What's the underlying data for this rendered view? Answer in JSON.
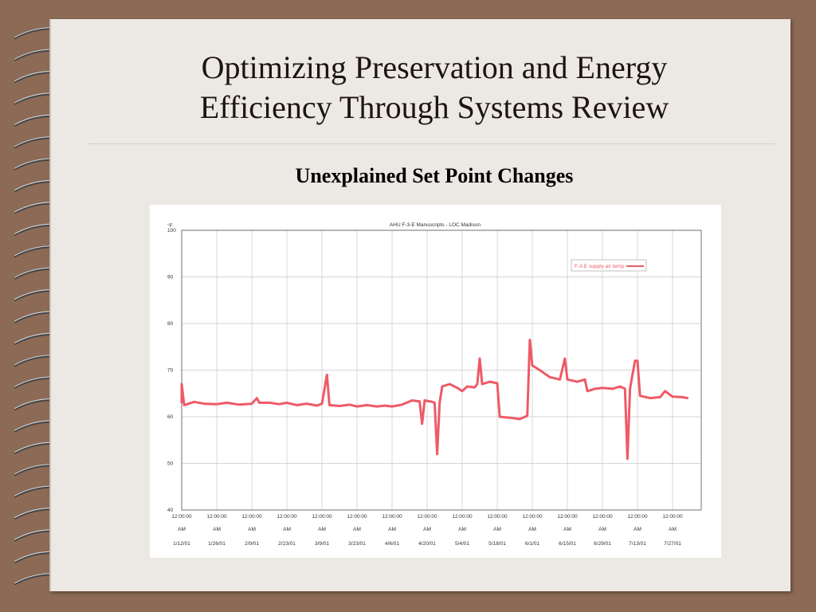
{
  "slide": {
    "title_line1": "Optimizing Preservation and Energy",
    "title_line2": "Efficiency Through Systems Review",
    "subtitle": "Unexplained Set Point Changes"
  },
  "colors": {
    "background": "#8c6a55",
    "page": "#ece8e3",
    "series": "#ee5a66"
  },
  "chart_data": {
    "type": "line",
    "title": "AHU F-3-E Manuscripts - LOC Madison",
    "ylabel": "°F",
    "xlabel": "",
    "ylim": [
      40,
      100
    ],
    "yticks": [
      40,
      50,
      60,
      70,
      80,
      90,
      100
    ],
    "grid": true,
    "legend": "top-right",
    "x_tick_labels": [
      {
        "time": "12:00:00",
        "ampm": "AM",
        "date": "1/12/01"
      },
      {
        "time": "12:00:00",
        "ampm": "AM",
        "date": "1/26/01"
      },
      {
        "time": "12:00:00",
        "ampm": "AM",
        "date": "2/9/01"
      },
      {
        "time": "12:00:00",
        "ampm": "AM",
        "date": "2/23/01"
      },
      {
        "time": "12:00:00",
        "ampm": "AM",
        "date": "3/9/01"
      },
      {
        "time": "12:00:00",
        "ampm": "AM",
        "date": "3/23/01"
      },
      {
        "time": "12:00:00",
        "ampm": "AM",
        "date": "4/6/01"
      },
      {
        "time": "12:00:00",
        "ampm": "AM",
        "date": "4/20/01"
      },
      {
        "time": "12:00:00",
        "ampm": "AM",
        "date": "5/4/01"
      },
      {
        "time": "12:00:00",
        "ampm": "AM",
        "date": "5/18/01"
      },
      {
        "time": "12:00:00",
        "ampm": "AM",
        "date": "6/1/01"
      },
      {
        "time": "12:00:00",
        "ampm": "AM",
        "date": "6/15/01"
      },
      {
        "time": "12:00:00",
        "ampm": "AM",
        "date": "6/29/01"
      },
      {
        "time": "12:00:00",
        "ampm": "AM",
        "date": "7/13/01"
      },
      {
        "time": "12:00:00",
        "ampm": "AM",
        "date": "7/27/01"
      }
    ],
    "series": [
      {
        "name": "F-3-E supply air temp",
        "points": [
          [
            "2001-01-12",
            63.0
          ],
          [
            "2001-01-12",
            67.0
          ],
          [
            "2001-01-13",
            62.5
          ],
          [
            "2001-01-17",
            63.2
          ],
          [
            "2001-01-21",
            62.8
          ],
          [
            "2001-01-26",
            62.7
          ],
          [
            "2001-01-30",
            63.0
          ],
          [
            "2001-02-04",
            62.6
          ],
          [
            "2001-02-09",
            62.8
          ],
          [
            "2001-02-11",
            64.0
          ],
          [
            "2001-02-12",
            63.0
          ],
          [
            "2001-02-16",
            63.0
          ],
          [
            "2001-02-20",
            62.7
          ],
          [
            "2001-02-23",
            63.0
          ],
          [
            "2001-02-27",
            62.5
          ],
          [
            "2001-03-03",
            62.8
          ],
          [
            "2001-03-07",
            62.4
          ],
          [
            "2001-03-09",
            62.8
          ],
          [
            "2001-03-11",
            69.0
          ],
          [
            "2001-03-12",
            62.5
          ],
          [
            "2001-03-16",
            62.3
          ],
          [
            "2001-03-20",
            62.6
          ],
          [
            "2001-03-23",
            62.2
          ],
          [
            "2001-03-27",
            62.5
          ],
          [
            "2001-03-31",
            62.2
          ],
          [
            "2001-04-03",
            62.4
          ],
          [
            "2001-04-06",
            62.2
          ],
          [
            "2001-04-10",
            62.6
          ],
          [
            "2001-04-14",
            63.5
          ],
          [
            "2001-04-17",
            63.3
          ],
          [
            "2001-04-18",
            58.5
          ],
          [
            "2001-04-19",
            63.5
          ],
          [
            "2001-04-22",
            63.2
          ],
          [
            "2001-04-23",
            63.0
          ],
          [
            "2001-04-24",
            52.0
          ],
          [
            "2001-04-25",
            63.0
          ],
          [
            "2001-04-26",
            66.5
          ],
          [
            "2001-04-29",
            67.0
          ],
          [
            "2001-05-02",
            66.2
          ],
          [
            "2001-05-04",
            65.5
          ],
          [
            "2001-05-06",
            66.5
          ],
          [
            "2001-05-09",
            66.3
          ],
          [
            "2001-05-10",
            67.0
          ],
          [
            "2001-05-11",
            72.5
          ],
          [
            "2001-05-12",
            67.0
          ],
          [
            "2001-05-15",
            67.5
          ],
          [
            "2001-05-18",
            67.2
          ],
          [
            "2001-05-19",
            60.0
          ],
          [
            "2001-05-23",
            59.8
          ],
          [
            "2001-05-27",
            59.5
          ],
          [
            "2001-05-30",
            60.2
          ],
          [
            "2001-05-31",
            76.5
          ],
          [
            "2001-06-01",
            71.0
          ],
          [
            "2001-06-04",
            70.0
          ],
          [
            "2001-06-08",
            68.5
          ],
          [
            "2001-06-12",
            68.0
          ],
          [
            "2001-06-14",
            72.5
          ],
          [
            "2001-06-15",
            68.0
          ],
          [
            "2001-06-19",
            67.5
          ],
          [
            "2001-06-22",
            68.0
          ],
          [
            "2001-06-23",
            65.5
          ],
          [
            "2001-06-26",
            66.0
          ],
          [
            "2001-06-29",
            66.2
          ],
          [
            "2001-07-03",
            66.0
          ],
          [
            "2001-07-06",
            66.5
          ],
          [
            "2001-07-08",
            66.0
          ],
          [
            "2001-07-09",
            51.0
          ],
          [
            "2001-07-10",
            66.0
          ],
          [
            "2001-07-11",
            69.0
          ],
          [
            "2001-07-12",
            72.0
          ],
          [
            "2001-07-13",
            72.0
          ],
          [
            "2001-07-14",
            64.5
          ],
          [
            "2001-07-18",
            64.0
          ],
          [
            "2001-07-22",
            64.2
          ],
          [
            "2001-07-24",
            65.5
          ],
          [
            "2001-07-27",
            64.3
          ],
          [
            "2001-07-31",
            64.2
          ],
          [
            "2001-08-02",
            64.0
          ]
        ]
      }
    ]
  }
}
